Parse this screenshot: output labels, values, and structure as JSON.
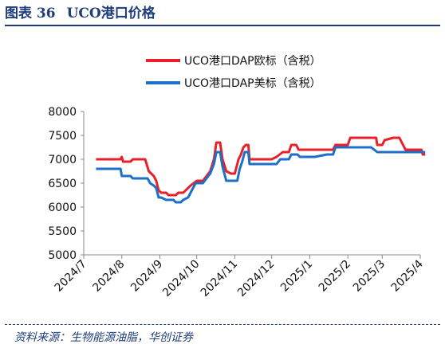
{
  "header": {
    "figure_number": "图表 36",
    "title": "UCO港口价格"
  },
  "footer": {
    "source": "资料来源：生物能源油脂，华创证券"
  },
  "chart_data": {
    "type": "line",
    "title": "UCO港口价格",
    "xlabel": "",
    "ylabel": "",
    "ylim": [
      5000,
      8000
    ],
    "yticks": [
      5000,
      5500,
      6000,
      6500,
      7000,
      7500,
      8000
    ],
    "xlim": [
      "2024-07-01",
      "2025-04-01"
    ],
    "x_tick_labels": [
      "2024/7",
      "2024/8",
      "2024/9",
      "2024/10",
      "2024/11",
      "2024/12",
      "2025/1",
      "2025/2",
      "2025/3",
      "2025/4"
    ],
    "x_tick_dates": [
      "2024-07-01",
      "2024-08-01",
      "2024-09-01",
      "2024-10-01",
      "2024-11-01",
      "2024-12-01",
      "2025-01-01",
      "2025-02-01",
      "2025-03-01",
      "2025-04-01"
    ],
    "grid": false,
    "legend": "top-center",
    "series": [
      {
        "name": "UCO港口DAP欧标（含税）",
        "color": "#e8202a",
        "points": [
          [
            "2024-07-11",
            7000
          ],
          [
            "2024-07-20",
            7000
          ],
          [
            "2024-07-31",
            7000
          ],
          [
            "2024-08-01",
            7050
          ],
          [
            "2024-08-02",
            6950
          ],
          [
            "2024-08-08",
            6950
          ],
          [
            "2024-08-10",
            7000
          ],
          [
            "2024-08-20",
            7000
          ],
          [
            "2024-08-23",
            6750
          ],
          [
            "2024-08-27",
            6650
          ],
          [
            "2024-08-29",
            6550
          ],
          [
            "2024-08-31",
            6350
          ],
          [
            "2024-09-02",
            6300
          ],
          [
            "2024-09-06",
            6300
          ],
          [
            "2024-09-08",
            6250
          ],
          [
            "2024-09-14",
            6250
          ],
          [
            "2024-09-16",
            6300
          ],
          [
            "2024-09-20",
            6300
          ],
          [
            "2024-09-22",
            6350
          ],
          [
            "2024-09-26",
            6450
          ],
          [
            "2024-10-01",
            6550
          ],
          [
            "2024-10-06",
            6550
          ],
          [
            "2024-10-09",
            6650
          ],
          [
            "2024-10-12",
            6750
          ],
          [
            "2024-10-15",
            7000
          ],
          [
            "2024-10-17",
            7350
          ],
          [
            "2024-10-20",
            7350
          ],
          [
            "2024-10-22",
            7000
          ],
          [
            "2024-10-25",
            6750
          ],
          [
            "2024-10-29",
            6700
          ],
          [
            "2024-11-01",
            6700
          ],
          [
            "2024-11-04",
            7000
          ],
          [
            "2024-11-06",
            7100
          ],
          [
            "2024-11-08",
            7250
          ],
          [
            "2024-11-10",
            7300
          ],
          [
            "2024-11-12",
            7300
          ],
          [
            "2024-11-13",
            7000
          ],
          [
            "2024-11-20",
            7000
          ],
          [
            "2024-11-28",
            7000
          ],
          [
            "2024-12-01",
            7000
          ],
          [
            "2024-12-05",
            7050
          ],
          [
            "2024-12-10",
            7150
          ],
          [
            "2024-12-15",
            7150
          ],
          [
            "2024-12-17",
            7300
          ],
          [
            "2024-12-21",
            7300
          ],
          [
            "2024-12-23",
            7200
          ],
          [
            "2025-01-05",
            7200
          ],
          [
            "2025-01-20",
            7200
          ],
          [
            "2025-01-22",
            7300
          ],
          [
            "2025-02-01",
            7300
          ],
          [
            "2025-02-03",
            7450
          ],
          [
            "2025-02-20",
            7450
          ],
          [
            "2025-02-24",
            7450
          ],
          [
            "2025-02-25",
            7300
          ],
          [
            "2025-03-01",
            7300
          ],
          [
            "2025-03-03",
            7400
          ],
          [
            "2025-03-10",
            7450
          ],
          [
            "2025-03-15",
            7450
          ],
          [
            "2025-03-20",
            7200
          ],
          [
            "2025-03-28",
            7200
          ],
          [
            "2025-04-02",
            7200
          ],
          [
            "2025-04-03",
            7100
          ],
          [
            "2025-04-05",
            7100
          ]
        ]
      },
      {
        "name": "UCO港口DAP美标（含税）",
        "color": "#1e6fc8",
        "points": [
          [
            "2024-07-11",
            6800
          ],
          [
            "2024-07-20",
            6800
          ],
          [
            "2024-07-31",
            6800
          ],
          [
            "2024-08-01",
            6650
          ],
          [
            "2024-08-08",
            6650
          ],
          [
            "2024-08-10",
            6600
          ],
          [
            "2024-08-20",
            6600
          ],
          [
            "2024-08-22",
            6600
          ],
          [
            "2024-08-24",
            6500
          ],
          [
            "2024-08-27",
            6450
          ],
          [
            "2024-08-29",
            6400
          ],
          [
            "2024-08-31",
            6200
          ],
          [
            "2024-09-02",
            6200
          ],
          [
            "2024-09-06",
            6150
          ],
          [
            "2024-09-12",
            6150
          ],
          [
            "2024-09-14",
            6100
          ],
          [
            "2024-09-18",
            6100
          ],
          [
            "2024-09-20",
            6150
          ],
          [
            "2024-09-24",
            6200
          ],
          [
            "2024-09-26",
            6300
          ],
          [
            "2024-09-30",
            6500
          ],
          [
            "2024-10-06",
            6500
          ],
          [
            "2024-10-09",
            6600
          ],
          [
            "2024-10-12",
            6700
          ],
          [
            "2024-10-15",
            6900
          ],
          [
            "2024-10-17",
            7150
          ],
          [
            "2024-10-20",
            7150
          ],
          [
            "2024-10-22",
            6850
          ],
          [
            "2024-10-25",
            6550
          ],
          [
            "2024-10-31",
            6550
          ],
          [
            "2024-11-03",
            6550
          ],
          [
            "2024-11-05",
            6800
          ],
          [
            "2024-11-07",
            6950
          ],
          [
            "2024-11-09",
            7150
          ],
          [
            "2024-11-12",
            7150
          ],
          [
            "2024-11-13",
            6900
          ],
          [
            "2024-11-20",
            6900
          ],
          [
            "2024-12-05",
            6900
          ],
          [
            "2024-12-08",
            7000
          ],
          [
            "2024-12-15",
            7000
          ],
          [
            "2024-12-17",
            7100
          ],
          [
            "2024-12-22",
            7100
          ],
          [
            "2024-12-24",
            7050
          ],
          [
            "2025-01-05",
            7050
          ],
          [
            "2025-01-15",
            7100
          ],
          [
            "2025-01-20",
            7100
          ],
          [
            "2025-01-22",
            7250
          ],
          [
            "2025-02-10",
            7250
          ],
          [
            "2025-02-20",
            7250
          ],
          [
            "2025-02-25",
            7150
          ],
          [
            "2025-03-20",
            7150
          ],
          [
            "2025-04-05",
            7150
          ]
        ]
      }
    ]
  }
}
